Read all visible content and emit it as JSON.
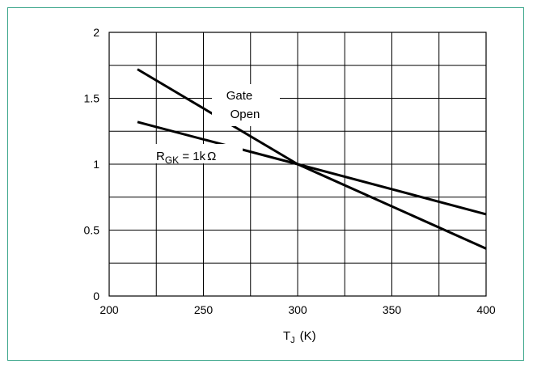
{
  "chart_data": {
    "type": "line",
    "xlabel": "T",
    "xlabel_sub": "J",
    "xlabel_unit": "(K)",
    "xlim": [
      200,
      400
    ],
    "ylim": [
      0,
      2
    ],
    "xticks": [
      "200",
      "250",
      "300",
      "350",
      "400"
    ],
    "yticks": [
      "0",
      "0.5",
      "1",
      "1.5",
      "2"
    ],
    "grid": true,
    "series": [
      {
        "name": "Gate Open",
        "x": [
          215,
          300,
          400
        ],
        "y": [
          1.72,
          1.0,
          0.36
        ]
      },
      {
        "name": "RGK = 1kΩ",
        "x": [
          215,
          300,
          400
        ],
        "y": [
          1.32,
          1.0,
          0.62
        ]
      }
    ],
    "annotations": {
      "gate_open_line1": "Gate",
      "gate_open_line2": "Open",
      "rgk_main": "R",
      "rgk_sub": "GK",
      "rgk_rest": " = 1k",
      "rgk_unit": "Ω"
    },
    "colors": {
      "frame": "#3aa58a",
      "line": "#000000"
    }
  }
}
